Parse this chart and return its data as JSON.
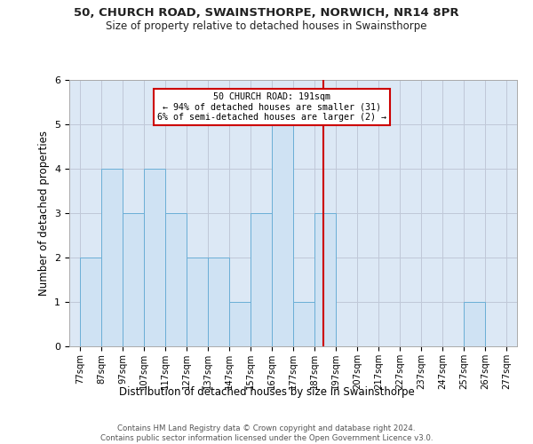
{
  "title_line1": "50, CHURCH ROAD, SWAINSTHORPE, NORWICH, NR14 8PR",
  "title_line2": "Size of property relative to detached houses in Swainsthorpe",
  "xlabel": "Distribution of detached houses by size in Swainsthorpe",
  "ylabel": "Number of detached properties",
  "bin_starts": [
    77,
    87,
    97,
    107,
    117,
    127,
    137,
    147,
    157,
    167,
    177,
    187,
    197,
    207,
    217,
    227,
    237,
    247,
    257,
    267
  ],
  "bin_width": 10,
  "counts": [
    2,
    4,
    3,
    4,
    3,
    2,
    2,
    1,
    3,
    5,
    1,
    3,
    0,
    0,
    0,
    0,
    0,
    0,
    1,
    0
  ],
  "bar_color": "#cfe2f3",
  "bar_edge_color": "#6baed6",
  "property_size": 191,
  "annotation_title": "50 CHURCH ROAD: 191sqm",
  "annotation_line2": "← 94% of detached houses are smaller (31)",
  "annotation_line3": "6% of semi-detached houses are larger (2) →",
  "vline_color": "#cc0000",
  "annotation_box_color": "#cc0000",
  "grid_color": "#c0c8d8",
  "ylim": [
    0,
    6
  ],
  "yticks": [
    0,
    1,
    2,
    3,
    4,
    5,
    6
  ],
  "footer_line1": "Contains HM Land Registry data © Crown copyright and database right 2024.",
  "footer_line2": "Contains public sector information licensed under the Open Government Licence v3.0.",
  "background_color": "#dce8f5"
}
